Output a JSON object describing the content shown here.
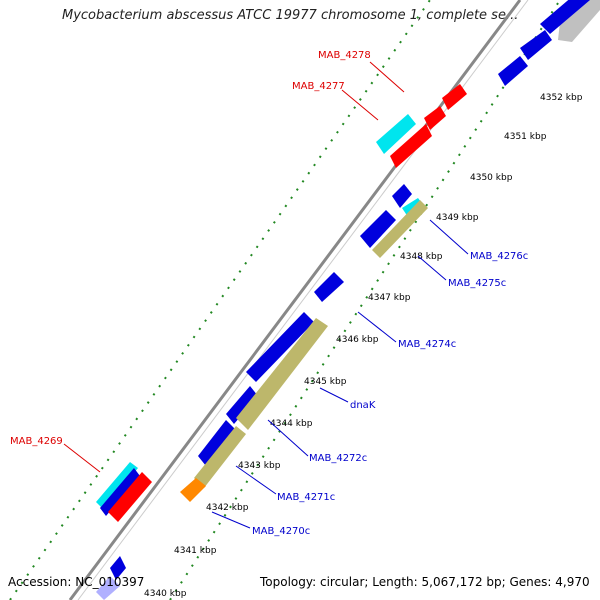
{
  "title": "Mycobacterium abscessus ATCC 19977 chromosome 1, complete se...",
  "footer": {
    "accession": "Accession: NC_010397",
    "summary": "Topology: circular; Length: 5,067,172 bp; Genes: 4,970"
  },
  "colors": {
    "blue_gene": "#0000dd",
    "red_gene": "#ff0000",
    "cyan_gene": "#00e5ee",
    "khaki_gene": "#bdb76b",
    "orange_gene": "#ff8800",
    "grey_gene": "#c0c0c0",
    "axis": "#888888",
    "ticks": "#228822",
    "label_blue": "#0000cc",
    "label_red": "#dd0000"
  },
  "kbp_ticks": [
    "4340 kbp",
    "4341 kbp",
    "4342 kbp",
    "4343 kbp",
    "4344 kbp",
    "4345 kbp",
    "4346 kbp",
    "4347 kbp",
    "4348 kbp",
    "4349 kbp",
    "4350 kbp",
    "4351 kbp",
    "4352 kbp"
  ],
  "gene_labels_blue": [
    "MAB_4276c",
    "MAB_4275c",
    "MAB_4274c",
    "dnaK",
    "MAB_4272c",
    "MAB_4271c",
    "MAB_4270c"
  ],
  "gene_labels_red": [
    "MAB_4278",
    "MAB_4277",
    "MAB_4269"
  ]
}
